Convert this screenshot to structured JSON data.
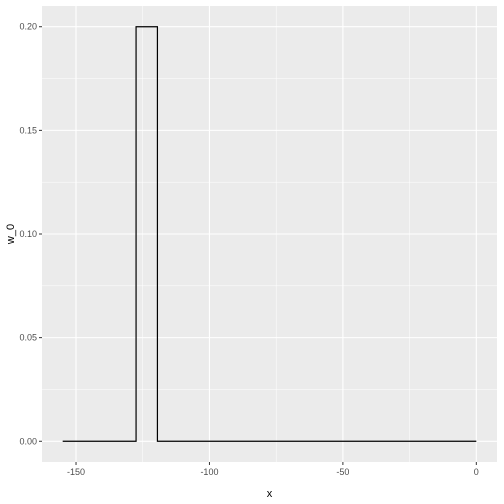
{
  "chart_data": {
    "type": "line",
    "step": true,
    "xlabel": "x",
    "ylabel": "w_0",
    "xlim": [
      -155,
      0
    ],
    "ylim": [
      0,
      0.2
    ],
    "x_ticks": [
      -150,
      -100,
      -50,
      0
    ],
    "x_tick_labels": [
      "-150",
      "-100",
      "-50",
      "0"
    ],
    "y_ticks": [
      0,
      0.05,
      0.1,
      0.15,
      0.2
    ],
    "y_tick_labels": [
      "0.00",
      "0.05",
      "0.10",
      "0.15",
      "0.20"
    ],
    "grid": true,
    "colors": {
      "panel": "#ebebeb",
      "grid": "#ffffff",
      "line": "#000000",
      "tick": "#333333"
    },
    "series": [
      {
        "x": [
          -155,
          -127.5,
          -127.5,
          -119.5,
          -119.5,
          0
        ],
        "y": [
          0,
          0,
          0.2,
          0.2,
          0,
          0
        ]
      }
    ]
  }
}
